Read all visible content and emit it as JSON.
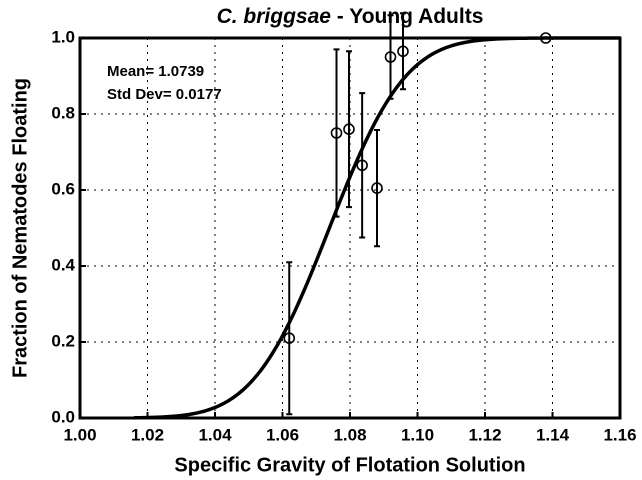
{
  "chart_data": {
    "type": "scatter",
    "title": {
      "italic": "C. briggsae",
      "rest": " - Young Adults"
    },
    "x_label": "Specific Gravity of Flotation Solution",
    "y_label": "Fraction of Nematodes Floating",
    "annotations": [
      {
        "label": "Mean= 1.0739",
        "value": 1.0739
      },
      {
        "label": "Std Dev= 0.0177",
        "value": 0.0177
      }
    ],
    "series": [
      {
        "color": "#000000",
        "x": [
          1.062,
          1.076,
          1.0797,
          1.0836,
          1.088,
          1.092,
          1.0957,
          1.138
        ],
        "values": [
          0.21,
          0.75,
          0.76,
          0.665,
          0.605,
          0.95,
          0.965,
          1.0
        ],
        "errors": [
          0.2,
          0.22,
          0.205,
          0.19,
          0.153,
          0.11,
          0.1,
          0
        ]
      }
    ],
    "xlim": [
      1.0,
      1.16
    ],
    "xticks": [
      {
        "value": 1.0,
        "label": "1.00"
      },
      {
        "value": 1.02,
        "label": "1.02"
      },
      {
        "value": 1.04,
        "label": "1.04"
      },
      {
        "value": 1.06,
        "label": "1.06"
      },
      {
        "value": 1.08,
        "label": "1.08"
      },
      {
        "value": 1.1,
        "label": "1.10"
      },
      {
        "value": 1.12,
        "label": "1.12"
      },
      {
        "value": 1.14,
        "label": "1.14"
      },
      {
        "value": 1.16,
        "label": "1.16"
      }
    ],
    "ylim": [
      0,
      1
    ],
    "yticks": [
      {
        "value": 0,
        "label": "0.0"
      },
      {
        "value": 0.2,
        "label": "0.2"
      },
      {
        "value": 0.4,
        "label": "0.4"
      },
      {
        "value": 0.6,
        "label": "0.6"
      },
      {
        "value": 0.8,
        "label": "0.8"
      },
      {
        "value": 1,
        "label": "1.0"
      }
    ],
    "grid": true
  }
}
